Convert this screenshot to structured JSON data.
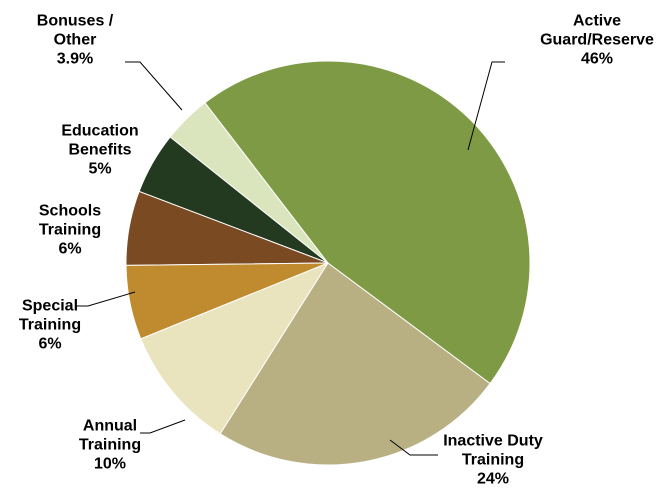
{
  "chart_data": {
    "type": "pie",
    "categories": [
      "Active Guard/Reserve",
      "Inactive Duty Training",
      "Annual Training",
      "Special Training",
      "Schools Training",
      "Education Benefits",
      "Bonuses / Other"
    ],
    "values": [
      46,
      24,
      10,
      6,
      6,
      5,
      3.9
    ],
    "value_labels": [
      "46%",
      "24%",
      "10%",
      "6%",
      "6%",
      "5%",
      "3.9%"
    ],
    "colors": [
      "#7f9a45",
      "#b8b083",
      "#e9e3be",
      "#c08a2e",
      "#7a4a22",
      "#233a20",
      "#dbe5bd"
    ]
  }
}
